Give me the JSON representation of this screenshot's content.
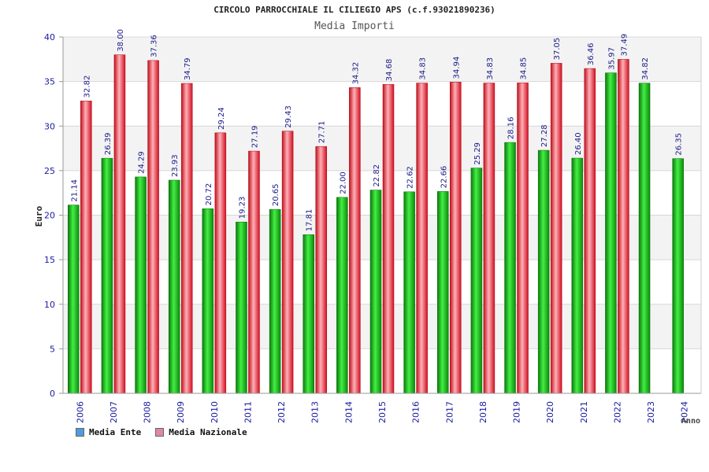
{
  "chart_data": {
    "type": "bar",
    "title": "CIRCOLO PARROCCHIALE IL CILIEGIO APS (c.f.93021890236)",
    "subtitle": "Media Importi",
    "ylabel": "Euro",
    "xlabel": "Anno",
    "ylim": [
      0,
      40
    ],
    "yticks": [
      0,
      5,
      10,
      15,
      20,
      25,
      30,
      35,
      40
    ],
    "grid": true,
    "legend_position": "bottom-left",
    "categories": [
      "2006",
      "2007",
      "2008",
      "2009",
      "2010",
      "2011",
      "2012",
      "2013",
      "2014",
      "2015",
      "2016",
      "2017",
      "2018",
      "2019",
      "2020",
      "2021",
      "2022",
      "2023",
      "2024"
    ],
    "series": [
      {
        "name": "Media Ente",
        "color": "#22bb22",
        "legend_color": "#5599dd",
        "values": [
          21.14,
          26.39,
          24.29,
          23.93,
          20.72,
          19.23,
          20.65,
          17.81,
          22.0,
          22.82,
          22.62,
          22.66,
          25.29,
          28.16,
          27.28,
          26.4,
          35.97,
          34.82,
          26.35
        ],
        "labels": [
          "21.14",
          "26.39",
          "24.29",
          "23.93",
          "20.72",
          "19.23",
          "20.65",
          "17.81",
          "22.00",
          "22.82",
          "22.62",
          "22.66",
          "25.29",
          "28.16",
          "27.28",
          "26.40",
          "35.97",
          "34.82",
          "26.35"
        ]
      },
      {
        "name": "Media Nazionale",
        "color": "#ee2233",
        "legend_color": "#dd88aa",
        "values": [
          32.82,
          38.0,
          37.36,
          34.79,
          29.24,
          27.19,
          29.43,
          27.71,
          34.32,
          34.68,
          34.83,
          34.94,
          34.83,
          34.85,
          37.05,
          36.46,
          37.49,
          null,
          null
        ],
        "labels": [
          "32.82",
          "38.00",
          "37.36",
          "34.79",
          "29.24",
          "27.19",
          "29.43",
          "27.71",
          "34.32",
          "34.68",
          "34.83",
          "34.94",
          "34.83",
          "34.85",
          "37.05",
          "36.46",
          "37.49",
          "",
          ""
        ]
      }
    ]
  }
}
